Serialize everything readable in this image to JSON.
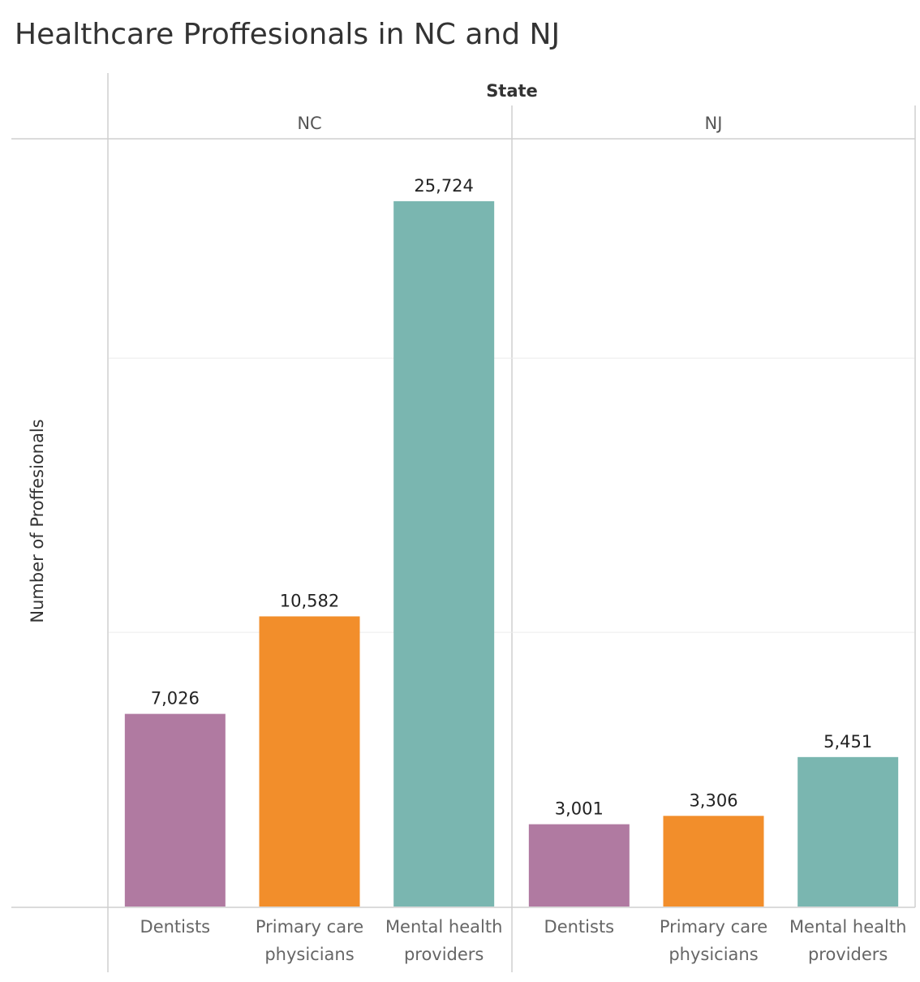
{
  "chart_data": {
    "type": "bar",
    "title": "Healthcare Proffesionals in NC and NJ",
    "column_header": "State",
    "ylabel": "Number of Proffesionals",
    "ylim": [
      0,
      28000
    ],
    "gridlines": [
      10000,
      20000
    ],
    "panels": [
      {
        "name": "NC",
        "categories": [
          "Dentists",
          "Primary care physicians",
          "Mental health providers"
        ],
        "category_lines": [
          [
            "Dentists"
          ],
          [
            "Primary care",
            "physicians"
          ],
          [
            "Mental health",
            "providers"
          ]
        ],
        "values": [
          7026,
          10582,
          25724
        ],
        "labels": [
          "7,026",
          "10,582",
          "25,724"
        ]
      },
      {
        "name": "NJ",
        "categories": [
          "Dentists",
          "Primary care physicians",
          "Mental health providers"
        ],
        "category_lines": [
          [
            "Dentists"
          ],
          [
            "Primary care",
            "physicians"
          ],
          [
            "Mental health",
            "providers"
          ]
        ],
        "values": [
          3001,
          3306,
          5451
        ],
        "labels": [
          "3,001",
          "3,306",
          "5,451"
        ]
      }
    ],
    "colors": {
      "Dentists": "#b07aa1",
      "Primary care physicians": "#f28e2b",
      "Mental health providers": "#7ab6b0"
    }
  }
}
